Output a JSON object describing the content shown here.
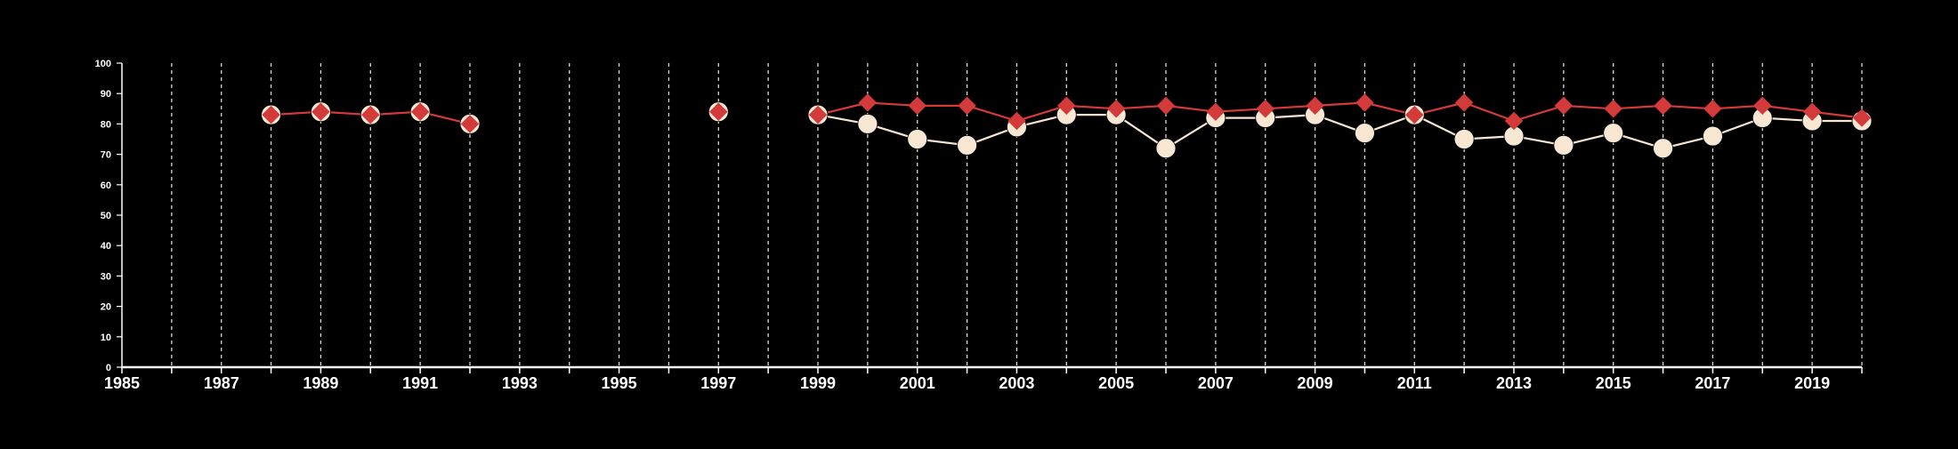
{
  "chart_data": {
    "type": "line",
    "title": "",
    "xlabel": "",
    "ylabel": "",
    "xlim": [
      1985,
      2020
    ],
    "ylim": [
      0,
      100
    ],
    "y_ticks": [
      0,
      10,
      20,
      30,
      40,
      50,
      60,
      70,
      80,
      90,
      100
    ],
    "x_ticks": [
      1985,
      1987,
      1989,
      1991,
      1993,
      1995,
      1997,
      1999,
      2001,
      2003,
      2005,
      2007,
      2009,
      2011,
      2013,
      2015,
      2017,
      2019
    ],
    "grid": "vertical dashed lines at each year",
    "legend": "none",
    "series": [
      {
        "color": "#f7e7d3",
        "marker": "circle",
        "segments": [
          [
            [
              1999,
              83
            ],
            [
              2000,
              80
            ],
            [
              2001,
              75
            ],
            [
              2002,
              73
            ],
            [
              2003,
              79
            ],
            [
              2004,
              83
            ],
            [
              2005,
              83
            ],
            [
              2006,
              72
            ],
            [
              2007,
              82
            ],
            [
              2008,
              82
            ],
            [
              2009,
              83
            ],
            [
              2010,
              77
            ],
            [
              2011,
              83
            ],
            [
              2012,
              75
            ],
            [
              2013,
              76
            ],
            [
              2014,
              73
            ],
            [
              2015,
              77
            ],
            [
              2016,
              72
            ],
            [
              2017,
              76
            ],
            [
              2018,
              82
            ],
            [
              2019,
              81
            ],
            [
              2020,
              81
            ]
          ]
        ],
        "isolated": [
          [
            1988,
            83
          ],
          [
            1989,
            84
          ],
          [
            1990,
            83
          ],
          [
            1991,
            84
          ],
          [
            1992,
            80
          ],
          [
            1997,
            84
          ]
        ]
      },
      {
        "color": "#d33a3a",
        "marker": "diamond",
        "segments": [
          [
            [
              1988,
              83
            ],
            [
              1989,
              84
            ],
            [
              1990,
              83
            ],
            [
              1991,
              84
            ],
            [
              1992,
              80
            ]
          ],
          [
            [
              1999,
              83
            ],
            [
              2000,
              87
            ],
            [
              2001,
              86
            ],
            [
              2002,
              86
            ],
            [
              2003,
              81
            ],
            [
              2004,
              86
            ],
            [
              2005,
              85
            ],
            [
              2006,
              86
            ],
            [
              2007,
              84
            ],
            [
              2008,
              85
            ],
            [
              2009,
              86
            ],
            [
              2010,
              87
            ],
            [
              2011,
              83
            ],
            [
              2012,
              87
            ],
            [
              2013,
              81
            ],
            [
              2014,
              86
            ],
            [
              2015,
              85
            ],
            [
              2016,
              86
            ],
            [
              2017,
              85
            ],
            [
              2018,
              86
            ],
            [
              2019,
              84
            ],
            [
              2020,
              82
            ]
          ]
        ],
        "isolated": [
          [
            1997,
            84
          ]
        ]
      }
    ]
  }
}
